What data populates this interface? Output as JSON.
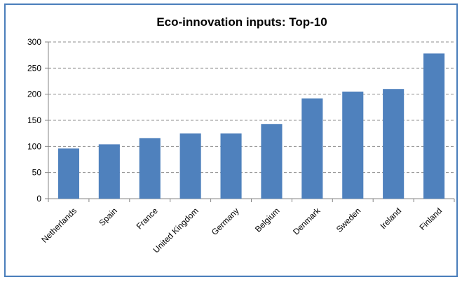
{
  "chart_data": {
    "type": "bar",
    "title": "Eco-innovation inputs: Top-10",
    "xlabel": "",
    "ylabel": "",
    "ylim": [
      0,
      300
    ],
    "yticks": [
      0,
      50,
      100,
      150,
      200,
      250,
      300
    ],
    "grid": true,
    "legend": "none",
    "categories": [
      "Netherlands",
      "Spain",
      "France",
      "United Kingdom",
      "Germany",
      "Belgium",
      "Denmark",
      "Sweden",
      "Ireland",
      "Finland"
    ],
    "values": [
      96,
      104,
      116,
      125,
      125,
      143,
      192,
      205,
      210,
      278
    ],
    "bar_color": "#4f81bd",
    "frame_color": "#4a7ebb"
  }
}
